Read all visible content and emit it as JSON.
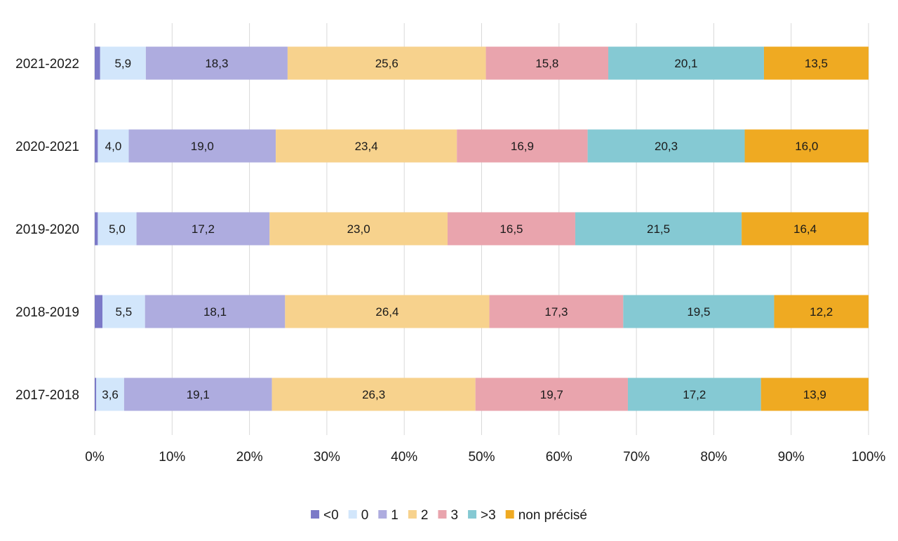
{
  "chart_data": {
    "type": "bar",
    "orientation": "horizontal",
    "stacked": "percent",
    "categories": [
      "2021-2022",
      "2020-2021",
      "2019-2020",
      "2018-2019",
      "2017-2018"
    ],
    "series": [
      {
        "name": "<0",
        "color": "#7b79c8",
        "values": [
          0.7,
          0.4,
          0.4,
          1.0,
          0.2
        ],
        "labels": [
          "",
          "",
          "",
          "",
          ""
        ]
      },
      {
        "name": "0",
        "color": "#d2e6fb",
        "values": [
          5.9,
          4.0,
          5.0,
          5.5,
          3.6
        ],
        "labels": [
          "5,9",
          "4,0",
          "5,0",
          "5,5",
          "3,6"
        ]
      },
      {
        "name": "1",
        "color": "#aeacdf",
        "values": [
          18.3,
          19.0,
          17.2,
          18.1,
          19.1
        ],
        "labels": [
          "18,3",
          "19,0",
          "17,2",
          "18,1",
          "19,1"
        ]
      },
      {
        "name": "2",
        "color": "#f7d28d",
        "values": [
          25.6,
          23.4,
          23.0,
          26.4,
          26.3
        ],
        "labels": [
          "25,6",
          "23,4",
          "23,0",
          "26,4",
          "26,3"
        ]
      },
      {
        "name": "3",
        "color": "#e9a4ad",
        "values": [
          15.8,
          16.9,
          16.5,
          17.3,
          19.7
        ],
        "labels": [
          "15,8",
          "16,9",
          "16,5",
          "17,3",
          "19,7"
        ]
      },
      {
        "name": ">3",
        "color": "#85c9d3",
        "values": [
          20.1,
          20.3,
          21.5,
          19.5,
          17.2
        ],
        "labels": [
          "20,1",
          "20,3",
          "21,5",
          "19,5",
          "17,2"
        ]
      },
      {
        "name": "non précisé",
        "color": "#efaa22",
        "values": [
          13.5,
          16.0,
          16.4,
          12.2,
          13.9
        ],
        "labels": [
          "13,5",
          "16,0",
          "16,4",
          "12,2",
          "13,9"
        ]
      }
    ],
    "xticks": [
      "0%",
      "10%",
      "20%",
      "30%",
      "40%",
      "50%",
      "60%",
      "70%",
      "80%",
      "90%",
      "100%"
    ],
    "xlim": [
      0,
      100
    ],
    "grid": "vertical",
    "legend": "bottom"
  }
}
